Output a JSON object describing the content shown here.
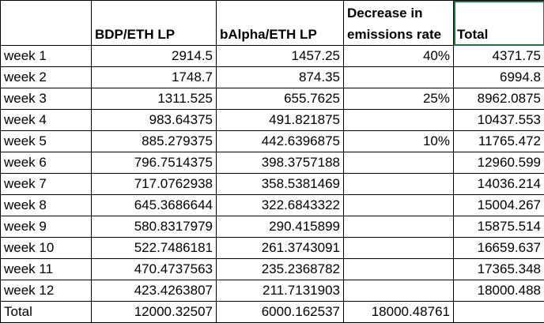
{
  "table": {
    "header": [
      null,
      "BDP/ETH LP",
      "bAlpha/ETH LP",
      "Decrease in emissions rate",
      "Total"
    ],
    "rows": [
      [
        "week 1",
        "2914.5",
        "1457.25",
        "40%",
        "4371.75"
      ],
      [
        "week 2",
        "1748.7",
        "874.35",
        null,
        "6994.8"
      ],
      [
        "week 3",
        "1311.525",
        "655.7625",
        "25%",
        "8962.0875"
      ],
      [
        "week 4",
        "983.64375",
        "491.821875",
        null,
        "10437.553"
      ],
      [
        "week 5",
        "885.279375",
        "442.6396875",
        "10%",
        "11765.472"
      ],
      [
        "week 6",
        "796.7514375",
        "398.3757188",
        null,
        "12960.599"
      ],
      [
        "week 7",
        "717.0762938",
        "358.5381469",
        null,
        "14036.214"
      ],
      [
        "week 8",
        "645.3686644",
        "322.6843322",
        null,
        "15004.267"
      ],
      [
        "week 9",
        "580.8317979",
        "290.415899",
        null,
        "15875.514"
      ],
      [
        "week 10",
        "522.7486181",
        "261.3743091",
        null,
        "16659.637"
      ],
      [
        "week 11",
        "470.4737563",
        "235.2368782",
        null,
        "17365.348"
      ],
      [
        "week 12",
        "423.4263807",
        "211.7131903",
        null,
        "18000.488"
      ],
      [
        "Total",
        "12000.32507",
        "6000.162537",
        "18000.48761",
        null
      ]
    ]
  }
}
